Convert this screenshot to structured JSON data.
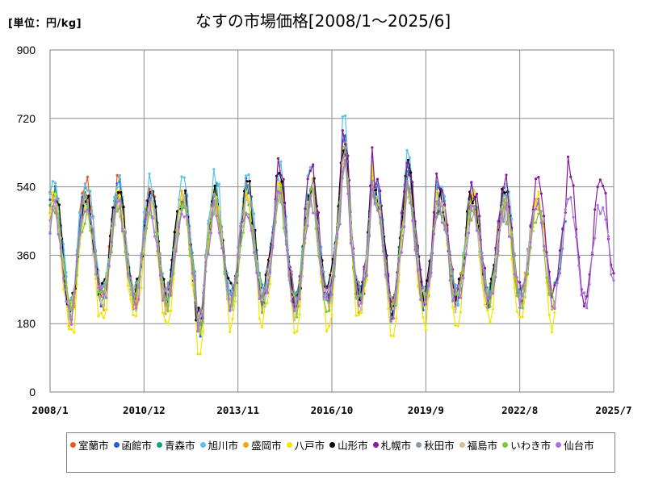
{
  "header": {
    "unit_label": "[単位：円/kg]",
    "title": "なすの市場価格[2008/1〜2025/6]"
  },
  "chart_data": {
    "type": "line",
    "title": "なすの市場価格[2008/1〜2025/6]",
    "ylabel": "[単位：円/kg]",
    "xlabel": "",
    "ylim": [
      0,
      900
    ],
    "y_ticks": [
      0,
      180,
      360,
      540,
      720,
      900
    ],
    "x_tick_labels": [
      "2008/1",
      "2010/12",
      "2013/11",
      "2016/10",
      "2019/9",
      "2022/8",
      "2025/7"
    ],
    "grid": true,
    "legend_position": "bottom",
    "series": [
      {
        "name": "室蘭市",
        "color": "#e8591a",
        "start": 2008.0,
        "end": 2011.7,
        "amp": 1.05,
        "offset": 15
      },
      {
        "name": "函館市",
        "color": "#1f5fd1",
        "start": 2008.0,
        "end": 2020.8,
        "amp": 1.0,
        "offset": 5
      },
      {
        "name": "青森市",
        "color": "#10a47c",
        "start": 2008.0,
        "end": 2024.0,
        "amp": 0.95,
        "offset": 0
      },
      {
        "name": "旭川市",
        "color": "#5bc2ec",
        "start": 2008.0,
        "end": 2022.9,
        "amp": 1.1,
        "offset": 20
      },
      {
        "name": "盛岡市",
        "color": "#f2a516",
        "start": 2008.0,
        "end": 2023.7,
        "amp": 0.95,
        "offset": -10
      },
      {
        "name": "八戸市",
        "color": "#f2e600",
        "start": 2008.0,
        "end": 2023.7,
        "amp": 1.15,
        "offset": -35
      },
      {
        "name": "山形市",
        "color": "#000000",
        "start": 2008.2,
        "end": 2022.3,
        "amp": 0.95,
        "offset": 10
      },
      {
        "name": "札幌市",
        "color": "#8a1a9a",
        "start": 2014.5,
        "end": 2025.5,
        "amp": 1.05,
        "offset": 20
      },
      {
        "name": "秋田市",
        "color": "#8c99a2",
        "start": 2008.0,
        "end": 2023.0,
        "amp": 0.9,
        "offset": -5
      },
      {
        "name": "福島市",
        "color": "#c8c594",
        "start": 2008.0,
        "end": 2023.0,
        "amp": 0.9,
        "offset": -15
      },
      {
        "name": "いわき市",
        "color": "#80c843",
        "start": 2008.0,
        "end": 2023.7,
        "amp": 0.85,
        "offset": -20
      },
      {
        "name": "仙台市",
        "color": "#a872dc",
        "start": 2008.0,
        "end": 2025.5,
        "amp": 0.85,
        "offset": -20
      }
    ]
  }
}
